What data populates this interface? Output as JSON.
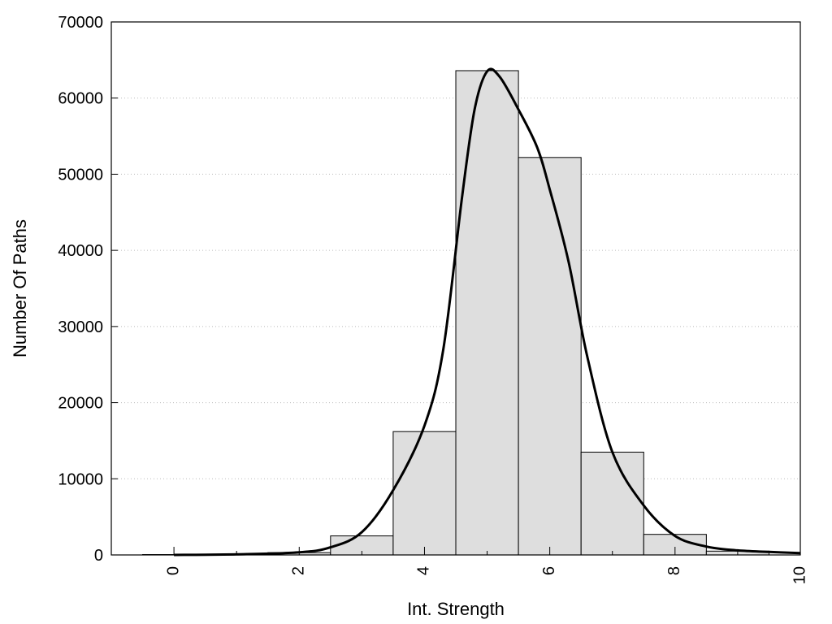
{
  "chart_data": {
    "type": "bar",
    "title": "",
    "xlabel": "Int. Strength",
    "ylabel": "Number Of Paths",
    "xlim": [
      -1,
      10
    ],
    "ylim": [
      0,
      70000
    ],
    "x_ticks": [
      0,
      2,
      4,
      6,
      8,
      10
    ],
    "y_ticks": [
      0,
      10000,
      20000,
      30000,
      40000,
      50000,
      60000,
      70000
    ],
    "grid": "horizontal dotted",
    "legend": "none",
    "colors": {
      "bar_fill": "#dedede",
      "bar_stroke": "#000000",
      "curve": "#000000",
      "grid": "#bbbbbb"
    },
    "bins": [
      {
        "x": 0,
        "value": 50
      },
      {
        "x": 1,
        "value": 100
      },
      {
        "x": 2,
        "value": 300
      },
      {
        "x": 3,
        "value": 2500
      },
      {
        "x": 4,
        "value": 16200
      },
      {
        "x": 5,
        "value": 63600
      },
      {
        "x": 6,
        "value": 52200
      },
      {
        "x": 7,
        "value": 13500
      },
      {
        "x": 8,
        "value": 2700
      },
      {
        "x": 9,
        "value": 500
      }
    ],
    "bin_width": 1,
    "curve": {
      "x": [
        0,
        1,
        2,
        2.5,
        3,
        3.5,
        4,
        4.3,
        4.6,
        4.8,
        5,
        5.2,
        5.5,
        5.8,
        6,
        6.3,
        6.6,
        7,
        7.5,
        8,
        8.5,
        9,
        9.5,
        10
      ],
      "y": [
        0,
        80,
        350,
        1000,
        3000,
        8500,
        17000,
        27000,
        47000,
        58500,
        63500,
        62800,
        58500,
        53500,
        48000,
        38500,
        26000,
        13500,
        6500,
        2500,
        1100,
        600,
        400,
        250
      ]
    }
  }
}
